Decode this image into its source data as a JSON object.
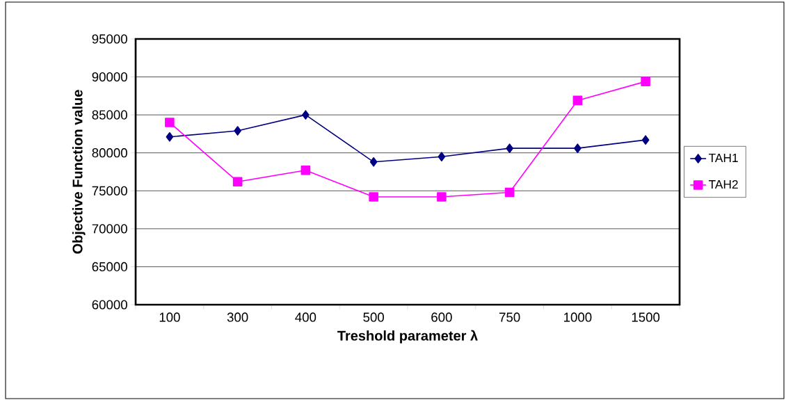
{
  "chart_data": {
    "type": "line",
    "xlabel": "Treshold parameter λ",
    "ylabel": "Objective Function value",
    "categories": [
      "100",
      "300",
      "400",
      "500",
      "600",
      "750",
      "1000",
      "1500"
    ],
    "series": [
      {
        "name": "TAH1",
        "color": "#000080",
        "marker": "diamond",
        "values": [
          82100,
          82900,
          85000,
          78800,
          79500,
          80600,
          80600,
          81700
        ]
      },
      {
        "name": "TAH2",
        "color": "#ff00ff",
        "marker": "square",
        "values": [
          84000,
          76200,
          77700,
          74200,
          74200,
          74800,
          86900,
          89400
        ]
      }
    ],
    "ylim": [
      60000,
      95000
    ],
    "yticks": [
      60000,
      65000,
      70000,
      75000,
      80000,
      85000,
      90000,
      95000
    ],
    "grid": "y",
    "legend": "right",
    "line_style": "solid"
  }
}
